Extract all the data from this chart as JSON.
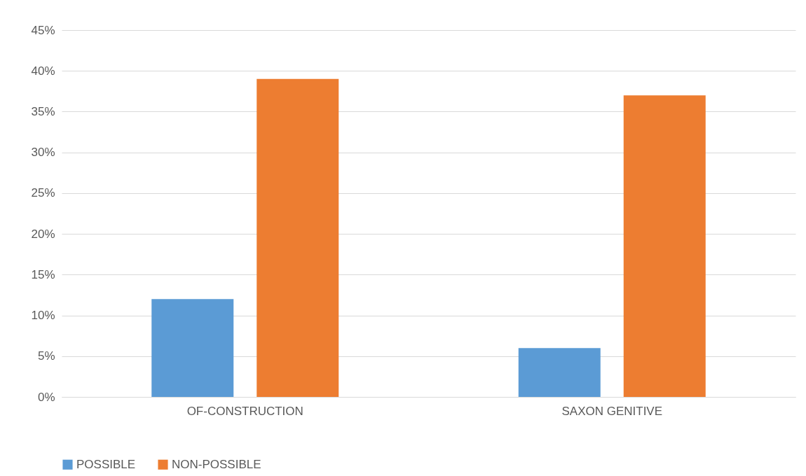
{
  "chart_data": {
    "type": "bar",
    "categories": [
      "OF-CONSTRUCTION",
      "SAXON GENITIVE"
    ],
    "series": [
      {
        "name": "POSSIBLE",
        "color": "#5b9bd5",
        "values": [
          12,
          6
        ]
      },
      {
        "name": "NON-POSSIBLE",
        "color": "#ed7d31",
        "values": [
          39,
          37
        ]
      }
    ],
    "ylim": [
      0,
      45
    ],
    "yticks": [
      {
        "value": 0,
        "label": "0%"
      },
      {
        "value": 5,
        "label": "5%"
      },
      {
        "value": 10,
        "label": "10%"
      },
      {
        "value": 15,
        "label": "15%"
      },
      {
        "value": 20,
        "label": "20%"
      },
      {
        "value": 25,
        "label": "25%"
      },
      {
        "value": 30,
        "label": "30%"
      },
      {
        "value": 35,
        "label": "35%"
      },
      {
        "value": 40,
        "label": "40%"
      },
      {
        "value": 45,
        "label": "45%"
      }
    ],
    "grid": "y",
    "legend": "bottom"
  }
}
